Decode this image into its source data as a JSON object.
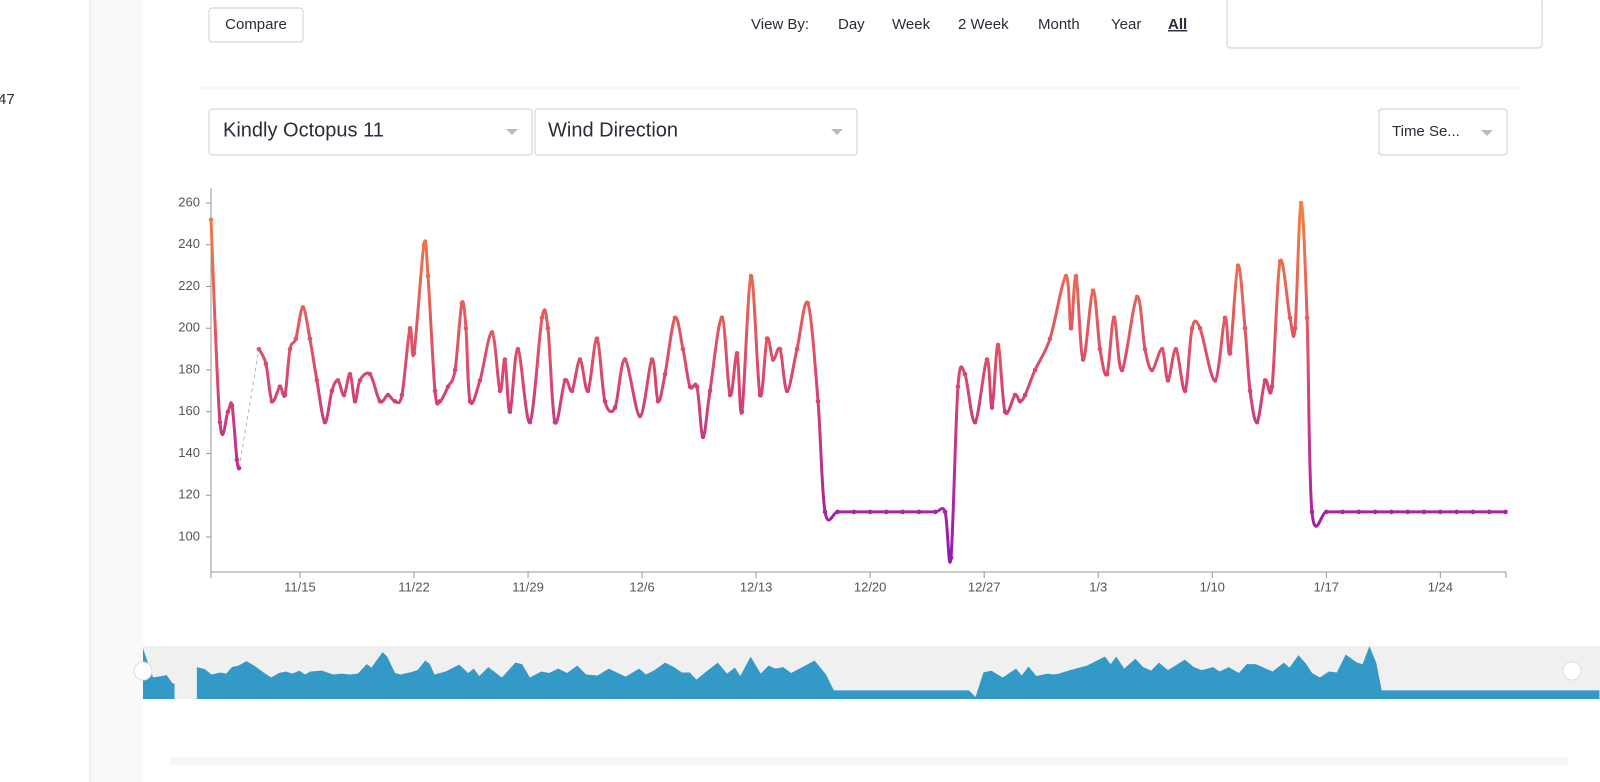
{
  "sidebar": {
    "text": "47"
  },
  "toolbar": {
    "compare": "Compare",
    "view_by_label": "View By:",
    "view_options": [
      "Day",
      "Week",
      "2 Week",
      "Month",
      "Year",
      "All"
    ],
    "active_view_index": 5
  },
  "selectors": {
    "device": "Kindly Octopus 11",
    "metric": "Wind Direction",
    "chart_type": "Time Se..."
  },
  "chart_data": {
    "type": "line",
    "x": [
      -5.46,
      -4.91,
      -4.42,
      -4.17,
      -3.87,
      -3.74,
      -3.1,
      -2.52,
      -2.09,
      -1.72,
      -1.23,
      -0.92,
      -0.61,
      -0.25,
      0.18,
      0.61,
      1.04,
      1.53,
      1.96,
      2.33,
      2.7,
      3.07,
      3.38,
      3.68,
      4.3,
      4.91,
      5.4,
      5.83,
      6.26,
      6.75,
      7.0,
      7.61,
      7.86,
      8.29,
      8.59,
      9.09,
      9.52,
      9.94,
      10.19,
      10.44,
      11.05,
      11.79,
      12.28,
      12.58,
      12.89,
      13.38,
      14.12,
      14.86,
      15.22,
      15.65,
      16.27,
      16.7,
      17.19,
      17.68,
      18.23,
      18.72,
      19.34,
      19.95,
      20.87,
      21.61,
      21.98,
      22.41,
      23.02,
      23.51,
      23.94,
      24.37,
      24.74,
      25.17,
      25.9,
      26.4,
      26.83,
      27.13,
      27.69,
      28.24,
      28.67,
      29.04,
      29.47,
      29.9,
      30.51,
      31.18,
      31.8,
      32.23,
      33,
      34,
      35,
      36,
      37,
      38,
      39,
      39.6,
      39.96,
      40.39,
      40.82,
      41.44,
      42.17,
      42.48,
      42.85,
      43.28,
      43.89,
      44.2,
      44.51,
      45.12,
      46.04,
      47.02,
      47.33,
      47.64,
      48.07,
      48.68,
      49.11,
      49.54,
      49.97,
      50.46,
      51.38,
      51.87,
      52.3,
      52.92,
      53.28,
      53.77,
      54.33,
      54.76,
      55.25,
      56.17,
      56.78,
      57.09,
      57.58,
      58.01,
      58.32,
      58.75,
      59.24,
      59.67,
      60.16,
      60.77,
      61.08,
      61.45,
      61.82,
      62.12,
      63,
      64,
      65,
      66,
      67,
      68,
      69,
      70,
      71,
      72,
      73,
      74
    ],
    "series": [
      {
        "values": [
          252,
          155,
          160,
          163,
          137,
          133,
          null,
          190,
          183,
          165,
          172,
          168,
          190,
          195,
          210,
          195,
          175,
          155,
          170,
          175,
          168,
          178,
          165,
          175,
          178,
          165,
          168,
          165,
          168,
          200,
          188,
          240,
          225,
          170,
          165,
          172,
          180,
          212,
          200,
          165,
          175,
          198,
          170,
          185,
          160,
          190,
          155,
          205,
          200,
          155,
          175,
          170,
          185,
          170,
          195,
          165,
          162,
          185,
          158,
          185,
          165,
          178,
          205,
          190,
          172,
          172,
          148,
          170,
          205,
          168,
          188,
          160,
          225,
          168,
          195,
          185,
          190,
          170,
          190,
          212,
          165,
          112,
          112,
          112,
          112,
          112,
          112,
          112,
          112,
          112,
          90,
          172,
          178,
          155,
          185,
          162,
          192,
          160,
          168,
          165,
          168,
          180,
          195,
          225,
          200,
          225,
          185,
          218,
          190,
          178,
          205,
          180,
          215,
          190,
          180,
          190,
          175,
          190,
          170,
          200,
          200,
          175,
          205,
          188,
          230,
          200,
          170,
          155,
          175,
          172,
          232,
          205,
          200,
          260,
          205,
          112,
          112,
          112,
          112,
          112,
          112,
          112,
          112,
          112,
          112,
          112,
          112,
          112
        ]
      }
    ],
    "xlim": [
      -5.46,
      74.03
    ],
    "xticks": [
      {
        "value": 0,
        "label": "11/15"
      },
      {
        "value": 7,
        "label": "11/22"
      },
      {
        "value": 14,
        "label": "11/29"
      },
      {
        "value": 21,
        "label": "12/6"
      },
      {
        "value": 28,
        "label": "12/13"
      },
      {
        "value": 35,
        "label": "12/20"
      },
      {
        "value": 42,
        "label": "12/27"
      },
      {
        "value": 49,
        "label": "1/3"
      },
      {
        "value": 56,
        "label": "1/10"
      },
      {
        "value": 63,
        "label": "1/17"
      },
      {
        "value": 70,
        "label": "1/24"
      }
    ],
    "ylim": [
      83.2,
      267.2
    ],
    "yticks": [
      100,
      120,
      140,
      160,
      180,
      200,
      220,
      240,
      260
    ],
    "gradient": [
      "#f5873f",
      "#d9466f",
      "#8f16b8"
    ],
    "navigator_color": "#3399c7"
  }
}
